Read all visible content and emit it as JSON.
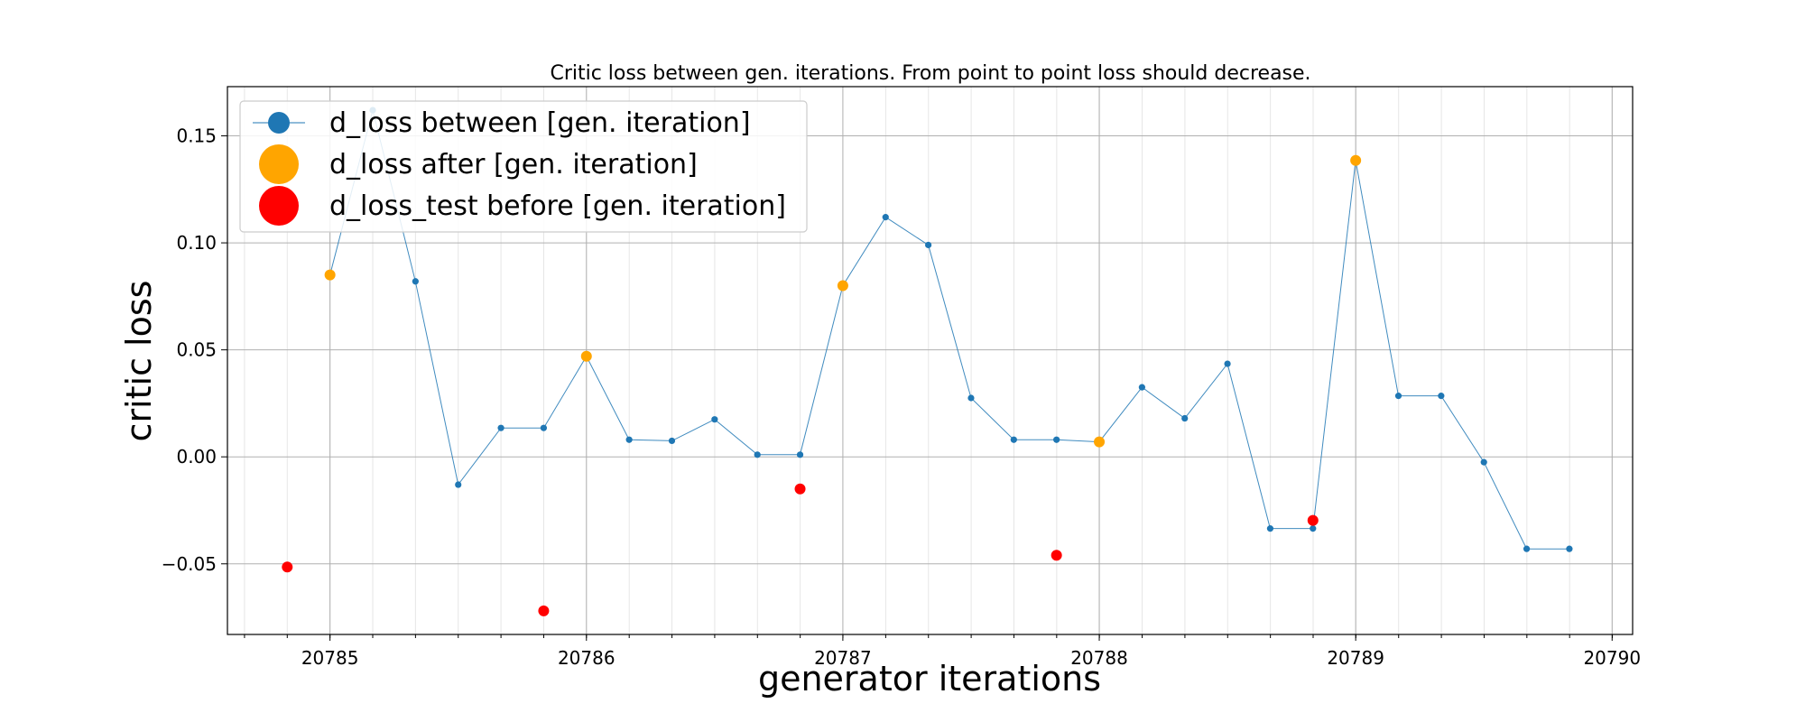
{
  "chart_data": {
    "type": "line",
    "title": "Critic loss between gen. iterations. From point to point loss should decrease.",
    "xlabel": "generator iterations",
    "ylabel": "critic loss",
    "xlim": [
      20784.6,
      20790.08
    ],
    "ylim": [
      -0.083,
      0.173
    ],
    "xticks": [
      20785,
      20786,
      20787,
      20788,
      20789,
      20790
    ],
    "xtick_labels": [
      "20785",
      "20786",
      "20787",
      "20788",
      "20789",
      "20790"
    ],
    "yticks": [
      -0.05,
      0.0,
      0.05,
      0.1,
      0.15
    ],
    "ytick_labels": [
      "−0.05",
      "0.00",
      "0.05",
      "0.10",
      "0.15"
    ],
    "minor_x_step": 0.1667,
    "grid": true,
    "legend_position": "upper-left",
    "series": [
      {
        "name": "d_loss between [gen. iteration]",
        "style": "line-with-markers",
        "color": "#1f77b4",
        "x": [
          20785.0,
          20785.1667,
          20785.3333,
          20785.5,
          20785.6667,
          20785.8333,
          20786.0,
          20786.1667,
          20786.3333,
          20786.5,
          20786.6667,
          20786.8333,
          20787.0,
          20787.1667,
          20787.3333,
          20787.5,
          20787.6667,
          20787.8333,
          20788.0,
          20788.1667,
          20788.3333,
          20788.5,
          20788.6667,
          20788.8333,
          20789.0,
          20789.1667,
          20789.3333,
          20789.5,
          20789.6667,
          20789.8333
        ],
        "y": [
          0.085,
          0.162,
          0.082,
          -0.013,
          0.0135,
          0.0135,
          0.047,
          0.008,
          0.0075,
          0.0175,
          0.001,
          0.001,
          0.08,
          0.112,
          0.099,
          0.0275,
          0.008,
          0.008,
          0.007,
          0.0325,
          0.018,
          0.0435,
          -0.0335,
          -0.0335,
          0.1385,
          0.0285,
          0.0285,
          -0.0025,
          -0.043,
          -0.043
        ]
      },
      {
        "name": "d_loss after [gen. iteration]",
        "style": "markers",
        "color": "#ffa500",
        "x": [
          20785,
          20786,
          20787,
          20788,
          20789
        ],
        "y": [
          0.085,
          0.047,
          0.08,
          0.007,
          0.1385
        ]
      },
      {
        "name": "d_loss_test before [gen. iteration]",
        "style": "markers",
        "color": "#ff0000",
        "x": [
          20784.8333,
          20785.8333,
          20786.8333,
          20787.8333,
          20788.8333
        ],
        "y": [
          -0.0515,
          -0.072,
          -0.015,
          -0.046,
          -0.0297
        ]
      }
    ]
  }
}
